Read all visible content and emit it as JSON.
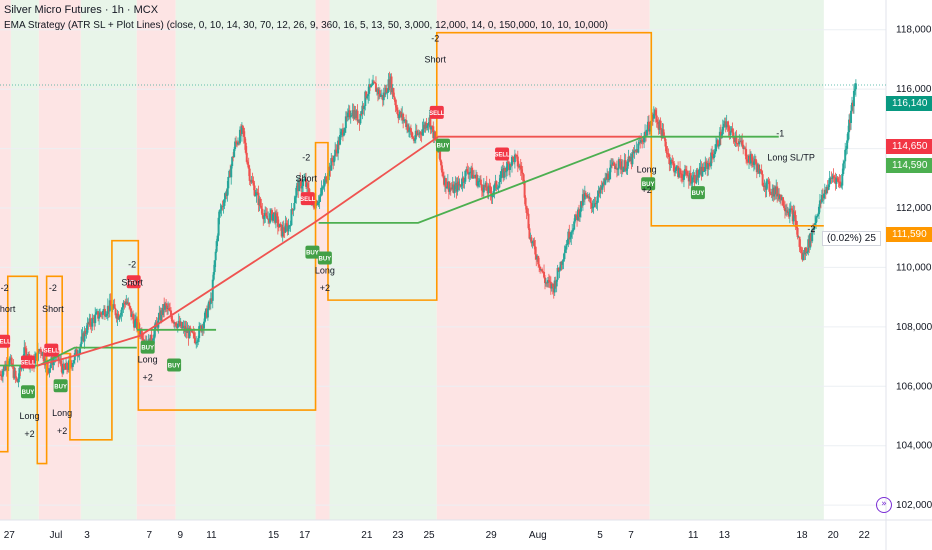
{
  "header": {
    "symbol_line": "Silver Micro Futures · 1h · MCX",
    "strategy_line": "EMA Strategy (ATR SL + Plot Lines) (close, 0, 10, 14, 30, 70, 12, 26, 9, 360, 16, 5, 13, 50, 3,000, 12,000, 14, 0, 150,000, 10, 10, 10,000)"
  },
  "price_tags": {
    "last": {
      "label": "116,140",
      "color": "#089981"
    },
    "red": {
      "label": "114,650",
      "color": "#f23645"
    },
    "green": {
      "label": "114,590",
      "color": "#4caf50"
    },
    "orange": {
      "label": "111,590",
      "color": "#ff9800"
    }
  },
  "tooltip": "(0.02%) 25",
  "nav_icon": "go-to-realtime-icon",
  "chart_data": {
    "type": "candlestick",
    "title": "",
    "xlabel": "",
    "ylabel": "",
    "ylim": [
      101500,
      119000
    ],
    "y_ticks": [
      102000,
      104000,
      106000,
      108000,
      110000,
      112000,
      114000,
      116000,
      118000
    ],
    "y_tick_labels": [
      "102,000",
      "104,000",
      "106,000",
      "108,000",
      "110,000",
      "112,000",
      "114,000",
      "116,000",
      "118,000"
    ],
    "x_ticks": [
      {
        "label": "27",
        "day": -3
      },
      {
        "label": "Jul",
        "day": 0
      },
      {
        "label": "3",
        "day": 2
      },
      {
        "label": "7",
        "day": 6
      },
      {
        "label": "9",
        "day": 8
      },
      {
        "label": "11",
        "day": 10
      },
      {
        "label": "15",
        "day": 14
      },
      {
        "label": "17",
        "day": 16
      },
      {
        "label": "21",
        "day": 20
      },
      {
        "label": "23",
        "day": 22
      },
      {
        "label": "25",
        "day": 24
      },
      {
        "label": "29",
        "day": 28
      },
      {
        "label": "Aug",
        "day": 31
      },
      {
        "label": "5",
        "day": 35
      },
      {
        "label": "7",
        "day": 37
      },
      {
        "label": "11",
        "day": 41
      },
      {
        "label": "13",
        "day": 43
      },
      {
        "label": "18",
        "day": 48
      },
      {
        "label": "20",
        "day": 50
      },
      {
        "label": "22",
        "day": 52
      }
    ],
    "colors": {
      "up": "#26a69a",
      "down": "#ef5350",
      "stop": "#ff9800",
      "entry": "#4caf50",
      "exit": "#ef5350",
      "bg_long": "#e8f5e9",
      "bg_short": "#fde4e4"
    },
    "background_zones": [
      {
        "from": -3.6,
        "to": -2.9,
        "side": "short"
      },
      {
        "from": -2.9,
        "to": -1.1,
        "side": "long"
      },
      {
        "from": -1.1,
        "to": 1.6,
        "side": "short"
      },
      {
        "from": 1.6,
        "to": 5.2,
        "side": "long"
      },
      {
        "from": 5.2,
        "to": 7.7,
        "side": "short"
      },
      {
        "from": 7.7,
        "to": 16.7,
        "side": "long"
      },
      {
        "from": 16.7,
        "to": 17.6,
        "side": "short"
      },
      {
        "from": 17.6,
        "to": 24.5,
        "side": "long"
      },
      {
        "from": 24.5,
        "to": 38.2,
        "side": "short"
      },
      {
        "from": 38.2,
        "to": 49.4,
        "side": "long"
      }
    ],
    "candle_anchors": [
      [
        -3.6,
        106400
      ],
      [
        -3,
        106900
      ],
      [
        -2.5,
        106100
      ],
      [
        -2,
        107200
      ],
      [
        -1.5,
        106700
      ],
      [
        -1,
        107300
      ],
      [
        -0.5,
        106600
      ],
      [
        0,
        107100
      ],
      [
        0.5,
        106500
      ],
      [
        1,
        106800
      ],
      [
        1.5,
        107300
      ],
      [
        2,
        108000
      ],
      [
        2.5,
        108300
      ],
      [
        3,
        108500
      ],
      [
        3.5,
        108700
      ],
      [
        4,
        108400
      ],
      [
        4.5,
        108900
      ],
      [
        5,
        108200
      ],
      [
        5.5,
        107800
      ],
      [
        6,
        107400
      ],
      [
        6.5,
        108100
      ],
      [
        7,
        108700
      ],
      [
        7.5,
        108300
      ],
      [
        8,
        108000
      ],
      [
        8.5,
        107800
      ],
      [
        9,
        107600
      ],
      [
        9.5,
        108200
      ],
      [
        10,
        108900
      ],
      [
        10.5,
        111800
      ],
      [
        11,
        112600
      ],
      [
        11.5,
        114100
      ],
      [
        12,
        114600
      ],
      [
        12.5,
        113000
      ],
      [
        13,
        112300
      ],
      [
        13.5,
        111600
      ],
      [
        14,
        111800
      ],
      [
        14.5,
        111200
      ],
      [
        15,
        111400
      ],
      [
        15.5,
        112700
      ],
      [
        16,
        112900
      ],
      [
        16.5,
        112100
      ],
      [
        17,
        112400
      ],
      [
        17.5,
        113200
      ],
      [
        18,
        113900
      ],
      [
        18.5,
        114700
      ],
      [
        19,
        115300
      ],
      [
        19.5,
        115000
      ],
      [
        20,
        115900
      ],
      [
        20.5,
        116100
      ],
      [
        21,
        115700
      ],
      [
        21.5,
        116300
      ],
      [
        22,
        115200
      ],
      [
        22.5,
        114900
      ],
      [
        23,
        114300
      ],
      [
        23.5,
        114600
      ],
      [
        24,
        115000
      ],
      [
        24.5,
        114100
      ],
      [
        25,
        112900
      ],
      [
        25.5,
        112600
      ],
      [
        26,
        112800
      ],
      [
        26.5,
        113300
      ],
      [
        27,
        113000
      ],
      [
        27.5,
        112700
      ],
      [
        28,
        112500
      ],
      [
        28.5,
        112900
      ],
      [
        29,
        113400
      ],
      [
        29.5,
        113700
      ],
      [
        30,
        113200
      ],
      [
        30.5,
        111000
      ],
      [
        31,
        110300
      ],
      [
        31.5,
        109500
      ],
      [
        32,
        109300
      ],
      [
        32.5,
        110200
      ],
      [
        33,
        111100
      ],
      [
        33.5,
        111700
      ],
      [
        34,
        112400
      ],
      [
        34.5,
        112100
      ],
      [
        35,
        112500
      ],
      [
        35.5,
        113100
      ],
      [
        36,
        113500
      ],
      [
        36.5,
        113400
      ],
      [
        37,
        113600
      ],
      [
        37.5,
        114100
      ],
      [
        38,
        114600
      ],
      [
        38.5,
        115200
      ],
      [
        39,
        114500
      ],
      [
        39.5,
        113600
      ],
      [
        40,
        113200
      ],
      [
        40.5,
        113100
      ],
      [
        41,
        113000
      ],
      [
        41.5,
        113200
      ],
      [
        42,
        113500
      ],
      [
        42.5,
        114100
      ],
      [
        43,
        114800
      ],
      [
        43.5,
        114500
      ],
      [
        44,
        114200
      ],
      [
        44.5,
        113700
      ],
      [
        45,
        113500
      ],
      [
        45.5,
        112900
      ],
      [
        46,
        112600
      ],
      [
        46.5,
        112500
      ],
      [
        47,
        112000
      ],
      [
        47.5,
        111700
      ],
      [
        48,
        110300
      ],
      [
        48.5,
        110900
      ],
      [
        49,
        111900
      ],
      [
        49.5,
        112600
      ],
      [
        50,
        113100
      ],
      [
        50.5,
        112800
      ],
      [
        51,
        114800
      ],
      [
        51.5,
        116200
      ]
    ],
    "stop_line": [
      [
        -3.6,
        103800
      ],
      [
        -3.1,
        103800
      ],
      [
        -3.1,
        109700
      ],
      [
        -1.2,
        109700
      ],
      [
        -1.2,
        103400
      ],
      [
        -0.6,
        103400
      ],
      [
        -0.6,
        109700
      ],
      [
        0.4,
        109700
      ],
      [
        0.4,
        107100
      ],
      [
        0.9,
        107100
      ],
      [
        0.9,
        104200
      ],
      [
        3.6,
        104200
      ],
      [
        3.6,
        110900
      ],
      [
        5.3,
        110900
      ],
      [
        5.3,
        105200
      ],
      [
        12.2,
        105200
      ],
      [
        12.2,
        105200
      ],
      [
        16.7,
        105200
      ],
      [
        16.7,
        114200
      ],
      [
        17.5,
        114200
      ],
      [
        17.5,
        108900
      ],
      [
        24.5,
        108900
      ],
      [
        24.5,
        117900
      ],
      [
        38.3,
        117900
      ],
      [
        38.3,
        111400
      ],
      [
        49.4,
        111400
      ]
    ],
    "entry_segments": [
      [
        [
          -3.6,
          106700
        ],
        [
          -1.1,
          106700
        ]
      ],
      [
        [
          -1.1,
          106700
        ],
        [
          1.2,
          107300
        ],
        [
          5.2,
          107300
        ]
      ],
      [
        [
          5.2,
          107900
        ],
        [
          10.3,
          107900
        ]
      ],
      [
        [
          16.9,
          111500
        ],
        [
          23.3,
          111500
        ],
        [
          37.8,
          114400
        ],
        [
          46.5,
          114400
        ]
      ]
    ],
    "exit_segments": [
      [
        [
          -1.2,
          106700
        ],
        [
          1,
          107000
        ],
        [
          5.4,
          107700
        ],
        [
          16.6,
          111500
        ],
        [
          24.6,
          114400
        ],
        [
          37.7,
          114400
        ]
      ]
    ],
    "signals": [
      {
        "day": -3.4,
        "price": 107500,
        "type": "SELL"
      },
      {
        "day": -1.8,
        "price": 106800,
        "type": "SELL"
      },
      {
        "day": -0.3,
        "price": 107200,
        "type": "SELL"
      },
      {
        "day": -1.8,
        "price": 105800,
        "type": "BUY"
      },
      {
        "day": 0.3,
        "price": 106000,
        "type": "BUY"
      },
      {
        "day": 5.0,
        "price": 109500,
        "type": "SELL"
      },
      {
        "day": 5.9,
        "price": 107300,
        "type": "BUY"
      },
      {
        "day": 7.6,
        "price": 106700,
        "type": "BUY"
      },
      {
        "day": 16.2,
        "price": 112300,
        "type": "SELL"
      },
      {
        "day": 16.5,
        "price": 110500,
        "type": "BUY"
      },
      {
        "day": 17.3,
        "price": 110300,
        "type": "BUY"
      },
      {
        "day": 24.5,
        "price": 115200,
        "type": "SELL"
      },
      {
        "day": 24.9,
        "price": 114100,
        "type": "BUY"
      },
      {
        "day": 28.7,
        "price": 113800,
        "type": "SELL"
      },
      {
        "day": 38.1,
        "price": 112800,
        "type": "BUY"
      },
      {
        "day": 41.3,
        "price": 112500,
        "type": "BUY"
      }
    ],
    "annotations": [
      {
        "day": -3.3,
        "price": 109200,
        "text": "-2"
      },
      {
        "day": -3.3,
        "price": 108500,
        "text": "Short"
      },
      {
        "day": -0.2,
        "price": 108500,
        "text": "Short"
      },
      {
        "day": -0.2,
        "price": 109200,
        "text": "-2"
      },
      {
        "day": -1.7,
        "price": 104900,
        "text": "Long"
      },
      {
        "day": -1.7,
        "price": 104300,
        "text": "+2"
      },
      {
        "day": 0.4,
        "price": 105000,
        "text": "Long"
      },
      {
        "day": 0.4,
        "price": 104400,
        "text": "+2"
      },
      {
        "day": 4.9,
        "price": 110000,
        "text": "-2"
      },
      {
        "day": 4.9,
        "price": 109400,
        "text": "Short"
      },
      {
        "day": 5.9,
        "price": 106800,
        "text": "Long"
      },
      {
        "day": 5.9,
        "price": 106200,
        "text": "+2"
      },
      {
        "day": 16.1,
        "price": 113600,
        "text": "-2"
      },
      {
        "day": 16.1,
        "price": 112900,
        "text": "Short"
      },
      {
        "day": 17.3,
        "price": 109800,
        "text": "Long"
      },
      {
        "day": 17.3,
        "price": 109200,
        "text": "+2"
      },
      {
        "day": 24.4,
        "price": 117600,
        "text": "-2"
      },
      {
        "day": 24.4,
        "price": 116900,
        "text": "Short"
      },
      {
        "day": 38.0,
        "price": 113200,
        "text": "Long"
      },
      {
        "day": 38.0,
        "price": 112500,
        "text": "+2"
      },
      {
        "day": 46.6,
        "price": 114400,
        "text": "-1"
      },
      {
        "day": 47.3,
        "price": 113600,
        "text": "Long SL/TP"
      },
      {
        "day": 48.6,
        "price": 111200,
        "text": "-2"
      }
    ]
  }
}
